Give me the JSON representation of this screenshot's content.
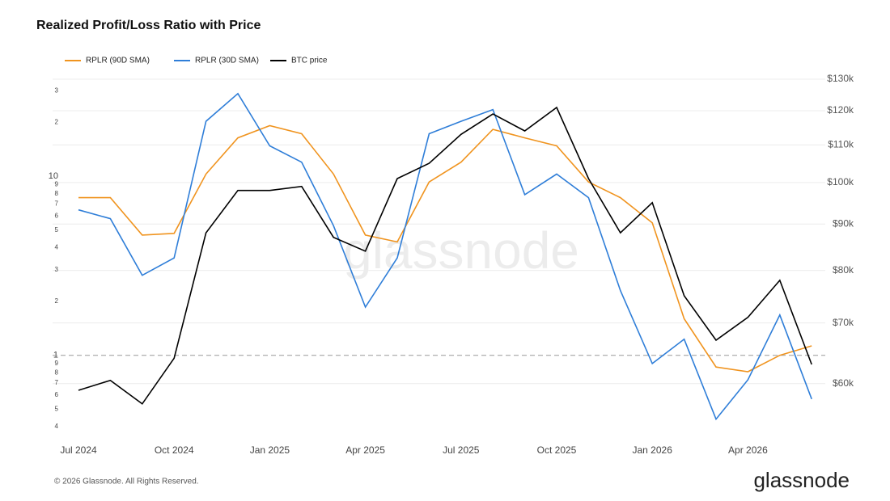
{
  "chart_data": {
    "type": "line",
    "title": "Realized Profit/Loss Ratio with Price",
    "x": [
      "Jul 2024",
      "Aug 2024",
      "Sep 2024",
      "Oct 2024",
      "Nov 2024",
      "Dec 2024",
      "Jan 2025",
      "Feb 2025",
      "Mar 2025",
      "Apr 2025",
      "May 2025",
      "Jun 2025",
      "Jul 2025",
      "Aug 2025",
      "Sep 2025",
      "Oct 2025",
      "Nov 2025",
      "Dec 2025",
      "Jan 2026",
      "Feb 2026",
      "Mar 2026",
      "Apr 2026",
      "May 2026",
      "Jun 2026"
    ],
    "xticks": [
      "Jul 2024",
      "Oct 2024",
      "Jan 2025",
      "Apr 2025",
      "Jul 2025",
      "Oct 2025",
      "Jan 2026",
      "Apr 2026"
    ],
    "series": [
      {
        "name": "RPLR (90D SMA)",
        "color": "#f0941f",
        "values": [
          7.6,
          7.6,
          4.7,
          4.8,
          10.3,
          16.4,
          19.2,
          17.3,
          10.3,
          4.7,
          4.3,
          9.3,
          12.0,
          18.3,
          16.4,
          14.8,
          9.3,
          7.6,
          5.5,
          1.6,
          0.86,
          0.81,
          1.0,
          1.13
        ]
      },
      {
        "name": "RPLR (30D SMA)",
        "color": "#2f7ed8",
        "values": [
          6.5,
          5.8,
          2.8,
          3.5,
          20.3,
          29.0,
          14.8,
          12.0,
          5.3,
          1.86,
          3.5,
          17.3,
          20.3,
          23.6,
          7.9,
          10.3,
          7.6,
          2.3,
          0.9,
          1.23,
          0.44,
          0.73,
          1.68,
          0.57
        ]
      },
      {
        "name": "BTC price",
        "color": "#000000",
        "axis": "y2",
        "values": [
          59000,
          60500,
          57000,
          64000,
          88000,
          98000,
          98000,
          99000,
          87000,
          84000,
          101000,
          105000,
          113000,
          119000,
          114000,
          121000,
          101000,
          88000,
          95000,
          75000,
          67000,
          71000,
          78000,
          63000
        ]
      }
    ],
    "ylim": [
      0.36,
      36
    ],
    "log_scale": true,
    "yticks": [
      {
        "value": 0.4,
        "label": "4"
      },
      {
        "value": 0.5,
        "label": "5"
      },
      {
        "value": 0.6,
        "label": "6"
      },
      {
        "value": 0.7,
        "label": "7"
      },
      {
        "value": 0.8,
        "label": "8"
      },
      {
        "value": 0.9,
        "label": "9"
      },
      1,
      2,
      3,
      4,
      5,
      6,
      7,
      8,
      9,
      10,
      {
        "value": 20,
        "label": "2"
      },
      {
        "value": 30,
        "label": "3"
      }
    ],
    "y2lim": [
      52700,
      130800
    ],
    "y2_log_scale": true,
    "y2ticks": [
      {
        "value": 60000,
        "label": "$60k"
      },
      {
        "value": 70000,
        "label": "$70k"
      },
      {
        "value": 80000,
        "label": "$80k"
      },
      {
        "value": 90000,
        "label": "$90k"
      },
      {
        "value": 100000,
        "label": "$100k"
      },
      {
        "value": 110000,
        "label": "$110k"
      },
      {
        "value": 120000,
        "label": "$120k"
      },
      {
        "value": 130000,
        "label": "$130k"
      }
    ],
    "grid": true,
    "reference_line": 1
  },
  "footer": "© 2026 Glassnode. All Rights Reserved.",
  "brand": "glassnode"
}
